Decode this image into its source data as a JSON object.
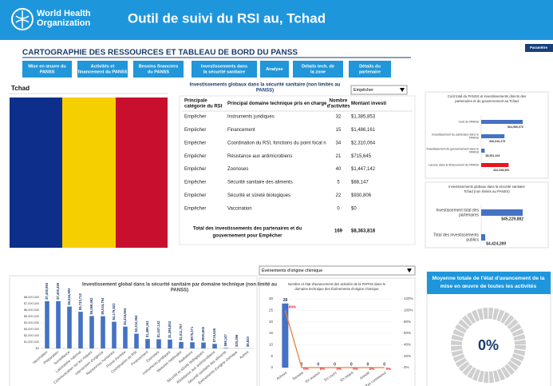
{
  "header": {
    "org": [
      "World Health",
      "Organization"
    ],
    "title": "Outil de suivi du RSI au, Tchad",
    "settings": "Paramètre"
  },
  "subtitle": "CARTOGRAPHIE DES RESSOURCES ET TABLEAU DE BORD DU PANSS",
  "nav": [
    [
      "Mise en œuvre du",
      "PANSS"
    ],
    [
      "Activités et",
      "financement du PANSS"
    ],
    [
      "Besoins financiers",
      "du PANSS"
    ],
    [
      "Investissements dans",
      "la sécurité sanitaire"
    ],
    [
      "Analyse"
    ],
    [
      "Détails tech. de",
      "la zone"
    ],
    [
      "Détails du",
      "partenaire"
    ]
  ],
  "country": "Tchad",
  "table": {
    "title": [
      "Investissements globaux dans la sécurité sanitaire (non limités au",
      "PANSS)"
    ],
    "filter": "Empêcher",
    "columns": [
      [
        "Principale",
        "catégorie du RSI"
      ],
      [
        "Principal domaine technique pris en charge"
      ],
      [
        "Nombre",
        "d'activités"
      ],
      [
        "Montant investi"
      ]
    ],
    "rows": [
      [
        "Empêcher",
        "Instruments juridiques",
        32,
        "$1,385,853"
      ],
      [
        "Empêcher",
        "Financement",
        15,
        "$1,486,161"
      ],
      [
        "Empêcher",
        "Coordination du RSI, fonctions du point focal n",
        34,
        "$2,310,064"
      ],
      [
        "Empêcher",
        "Résistance aux antimicrobiens",
        21,
        "$715,645"
      ],
      [
        "Empêcher",
        "Zoonoses",
        40,
        "$1,447,142"
      ],
      [
        "Empêcher",
        "Sécurité sanitaire des aliments",
        5,
        "$88,147"
      ],
      [
        "Empêcher",
        "Sécurité et sûreté biologiques",
        22,
        "$930,806"
      ],
      [
        "Empêcher",
        "Vaccination",
        0,
        "$0"
      ]
    ],
    "total": {
      "label": [
        "Total des investissements des partenaires et du",
        "gouvernement pour Empêcher"
      ],
      "count": 169,
      "amount": "$8,363,818"
    }
  },
  "chart_data": [
    {
      "type": "barh",
      "title": [
        "Coût total du PANSS et investissements directs des",
        "partenaires et du gouvernement au Tchad"
      ],
      "categories": [
        [
          "Coût du PANSS"
        ],
        [
          "Investissement du partenaire dans le",
          "PANSS"
        ],
        [
          "Investissement du gouvernement dans le",
          "PANSS"
        ],
        [
          "Lacune dans le financement du PANSS"
        ]
      ],
      "values": [
        64980070,
        36516279,
        5551433,
        42938981
      ],
      "value_labels": [
        "$64,980,070",
        "$36,516,279",
        "$5,551,433",
        "$42,938,981"
      ],
      "colors": [
        "#4472c4",
        "#4472c4",
        "#4472c4",
        "#e8141c"
      ]
    },
    {
      "type": "barh",
      "title": [
        "Investissements globaux dans la sécurité sanitaire",
        "Tchad (non limités au PANSS)"
      ],
      "categories": [
        [
          "Investissement total des",
          "partenaires"
        ],
        [
          "Total des investissements",
          "publics"
        ]
      ],
      "values": [
        45229882,
        4424289
      ],
      "value_labels": [
        "$45,229,882",
        "$4,424,289"
      ],
      "colors": [
        "#4472c4",
        "#4472c4"
      ]
    },
    {
      "type": "bar",
      "title": [
        "Investissement global dans la sécurité sanitaire par domaine technique (non limité au",
        "PANSS)"
      ],
      "categories": [
        "Vaccination",
        "Préparation",
        "Surveillance",
        "Laboratoire national",
        "Communication sur les risques",
        "Intervention d'urgence",
        "Ressources humaines",
        "Points d'entrée",
        "Coordination du RSI",
        "Financement",
        "Zoonoses",
        "Instruments juridiques",
        "Mesures médicales",
        "Radiations",
        "Sécurité et sûreté biologiques",
        "Résistance aux antimicrobiens",
        "Sécurité sanitaire des aliments",
        "Événements d'origine chimique",
        "Autres"
      ],
      "values": [
        7400953,
        7400459,
        6544983,
        5733712,
        5069062,
        5044794,
        4179823,
        3416964,
        2310064,
        1486161,
        1447142,
        1385853,
        1011757,
        975371,
        930806,
        715645,
        88147,
        20496,
        6823
      ],
      "value_labels": [
        "$7,400,953",
        "$7,400,459",
        "$6,544,983",
        "$5,733,712",
        "$5,069,062",
        "$5,044,794",
        "$4,179,823",
        "$3,416,964",
        "$2,310,064",
        "$1,486,161",
        "$1,447,142",
        "$1,385,853",
        "$1,011,757",
        "$975,371",
        "$930,806",
        "$715,645",
        "$88,147",
        "$20,496",
        "$6,823"
      ],
      "color": "#4472c4",
      "ylim": [
        0,
        8000000
      ],
      "yticks": [
        {
          "value": 0,
          "label": "$0"
        },
        {
          "value": 1000000,
          "label": "$1,000,000"
        },
        {
          "value": 2000000,
          "label": "$2,000,000"
        },
        {
          "value": 3000000,
          "label": "$3,000,000"
        },
        {
          "value": 4000000,
          "label": "$4,000,000"
        },
        {
          "value": 5000000,
          "label": "$5,000,000"
        },
        {
          "value": 6000000,
          "label": "$6,000,000"
        },
        {
          "value": 7000000,
          "label": "$7,000,000"
        },
        {
          "value": 8000000,
          "label": "$8,000,000"
        }
      ]
    },
    {
      "type": "combo",
      "filter": "Événements d'origine chimique",
      "title": [
        "Nombre et état d'avancement des activités de la PAPHS dans le",
        "domaine technique des Événements d'origine chimique"
      ],
      "categories": [
        "Achevé",
        "Terminé",
        "En avance",
        "En cours",
        "En retard",
        "Annulé",
        "Pas commencé"
      ],
      "series": [
        {
          "color": "#4472c4",
          "values": [
            28,
            0,
            0,
            0,
            0,
            0,
            0
          ]
        },
        {
          "color": "#ed7d31",
          "axis": "y2",
          "values": [
            100,
            0,
            0,
            0,
            0,
            0,
            0
          ],
          "value_labels": [
            "100%",
            "0%",
            "0%",
            "0%",
            "0%",
            "0%",
            "0%"
          ]
        }
      ],
      "ylim": [
        0,
        30
      ],
      "yticks": [
        0,
        5,
        10,
        15,
        20,
        25,
        30
      ],
      "y2lim": [
        0,
        120
      ],
      "y2ticks": [
        {
          "value": 0,
          "label": "0%"
        },
        {
          "value": 20,
          "label": "20%"
        },
        {
          "value": 40,
          "label": "40%"
        },
        {
          "value": 60,
          "label": "60%"
        },
        {
          "value": 80,
          "label": "80%"
        },
        {
          "value": 100,
          "label": "100%"
        },
        {
          "value": 120,
          "label": "120%"
        }
      ]
    },
    {
      "type": "gauge",
      "title": [
        "Moyenne totale de l'état d'avancement de la",
        "mise en œuvre de toutes les activités"
      ],
      "values": [
        0
      ],
      "value_labels": [
        "0%"
      ],
      "color": "#1e96dc"
    }
  ]
}
